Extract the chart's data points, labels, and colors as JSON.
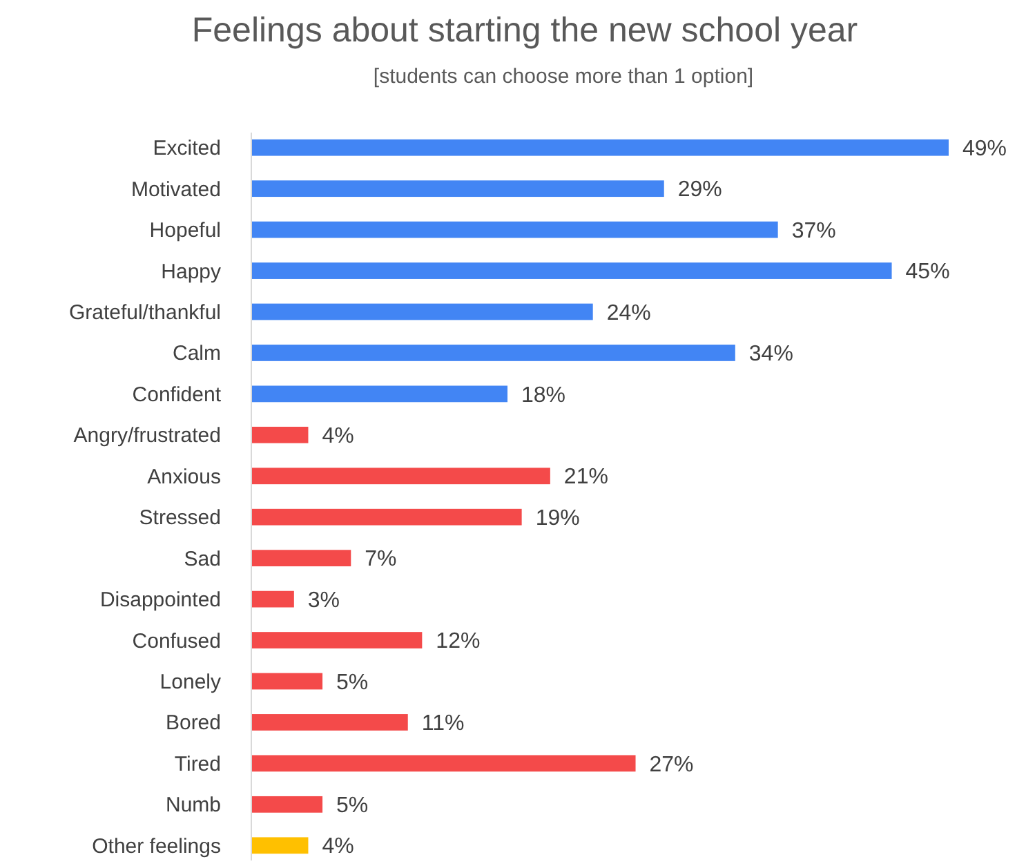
{
  "chart_data": {
    "type": "bar",
    "orientation": "horizontal",
    "title": "Feelings about starting the new school year",
    "subtitle": "[students can choose more than 1 option]",
    "categories": [
      "Excited",
      "Motivated",
      "Hopeful",
      "Happy",
      "Grateful/thankful",
      "Calm",
      "Confident",
      "Angry/frustrated",
      "Anxious",
      "Stressed",
      "Sad",
      "Disappointed",
      "Confused",
      "Lonely",
      "Bored",
      "Tired",
      "Numb",
      "Other feelings"
    ],
    "values": [
      49,
      29,
      37,
      45,
      24,
      34,
      18,
      4,
      21,
      19,
      7,
      3,
      12,
      5,
      11,
      27,
      5,
      4
    ],
    "value_labels": [
      "49%",
      "29%",
      "37%",
      "45%",
      "24%",
      "34%",
      "18%",
      "4%",
      "21%",
      "19%",
      "7%",
      "3%",
      "12%",
      "5%",
      "11%",
      "27%",
      "5%",
      "4%"
    ],
    "colors": [
      "#4285f4",
      "#4285f4",
      "#4285f4",
      "#4285f4",
      "#4285f4",
      "#4285f4",
      "#4285f4",
      "#f44a4a",
      "#f44a4a",
      "#f44a4a",
      "#f44a4a",
      "#f44a4a",
      "#f44a4a",
      "#f44a4a",
      "#f44a4a",
      "#f44a4a",
      "#f44a4a",
      "#ffc000"
    ]
  }
}
